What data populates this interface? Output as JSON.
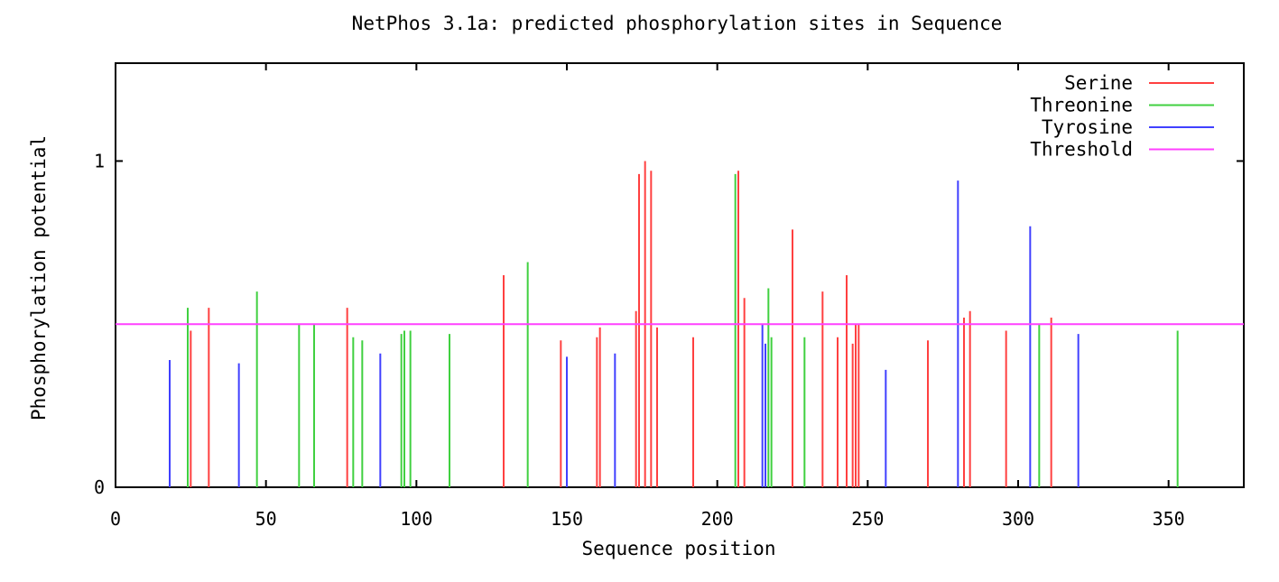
{
  "chart_data": {
    "type": "bar",
    "title": "NetPhos 3.1a: predicted phosphorylation sites in Sequence",
    "xlabel": "Sequence position",
    "ylabel": "Phosphorylation potential",
    "xlim": [
      0,
      375
    ],
    "ylim": [
      0,
      1.3
    ],
    "xticks": [
      0,
      50,
      100,
      150,
      200,
      250,
      300,
      350
    ],
    "xtick_labels": [
      "0",
      "50",
      "100",
      "150",
      "200",
      "250",
      "300",
      "350"
    ],
    "yticks": [
      0,
      1
    ],
    "ytick_labels": [
      "0",
      "1"
    ],
    "legend_position": "top-right",
    "threshold": 0.5,
    "series": [
      {
        "name": "Serine",
        "color": "#ff4040",
        "points": [
          {
            "x": 25,
            "y": 0.48
          },
          {
            "x": 31,
            "y": 0.55
          },
          {
            "x": 77,
            "y": 0.55
          },
          {
            "x": 129,
            "y": 0.65
          },
          {
            "x": 148,
            "y": 0.45
          },
          {
            "x": 160,
            "y": 0.46
          },
          {
            "x": 161,
            "y": 0.49
          },
          {
            "x": 173,
            "y": 0.54
          },
          {
            "x": 174,
            "y": 0.96
          },
          {
            "x": 176,
            "y": 1.0
          },
          {
            "x": 178,
            "y": 0.97
          },
          {
            "x": 180,
            "y": 0.49
          },
          {
            "x": 192,
            "y": 0.46
          },
          {
            "x": 207,
            "y": 0.97
          },
          {
            "x": 209,
            "y": 0.58
          },
          {
            "x": 225,
            "y": 0.79
          },
          {
            "x": 235,
            "y": 0.6
          },
          {
            "x": 240,
            "y": 0.46
          },
          {
            "x": 243,
            "y": 0.65
          },
          {
            "x": 245,
            "y": 0.44
          },
          {
            "x": 246,
            "y": 0.5
          },
          {
            "x": 247,
            "y": 0.5
          },
          {
            "x": 270,
            "y": 0.45
          },
          {
            "x": 282,
            "y": 0.52
          },
          {
            "x": 284,
            "y": 0.54
          },
          {
            "x": 296,
            "y": 0.48
          },
          {
            "x": 311,
            "y": 0.52
          }
        ]
      },
      {
        "name": "Threonine",
        "color": "#40d040",
        "points": [
          {
            "x": 24,
            "y": 0.55
          },
          {
            "x": 47,
            "y": 0.6
          },
          {
            "x": 61,
            "y": 0.5
          },
          {
            "x": 66,
            "y": 0.5
          },
          {
            "x": 79,
            "y": 0.46
          },
          {
            "x": 82,
            "y": 0.45
          },
          {
            "x": 95,
            "y": 0.47
          },
          {
            "x": 96,
            "y": 0.48
          },
          {
            "x": 98,
            "y": 0.48
          },
          {
            "x": 111,
            "y": 0.47
          },
          {
            "x": 137,
            "y": 0.69
          },
          {
            "x": 206,
            "y": 0.96
          },
          {
            "x": 217,
            "y": 0.61
          },
          {
            "x": 218,
            "y": 0.46
          },
          {
            "x": 229,
            "y": 0.46
          },
          {
            "x": 307,
            "y": 0.5
          },
          {
            "x": 353,
            "y": 0.48
          }
        ]
      },
      {
        "name": "Tyrosine",
        "color": "#4040ff",
        "points": [
          {
            "x": 18,
            "y": 0.39
          },
          {
            "x": 41,
            "y": 0.38
          },
          {
            "x": 88,
            "y": 0.41
          },
          {
            "x": 150,
            "y": 0.4
          },
          {
            "x": 166,
            "y": 0.41
          },
          {
            "x": 215,
            "y": 0.5
          },
          {
            "x": 216,
            "y": 0.44
          },
          {
            "x": 256,
            "y": 0.36
          },
          {
            "x": 280,
            "y": 0.94
          },
          {
            "x": 304,
            "y": 0.8
          },
          {
            "x": 320,
            "y": 0.47
          }
        ]
      },
      {
        "name": "Threshold",
        "color": "#ff40ff",
        "type": "line",
        "value": 0.5
      }
    ]
  }
}
